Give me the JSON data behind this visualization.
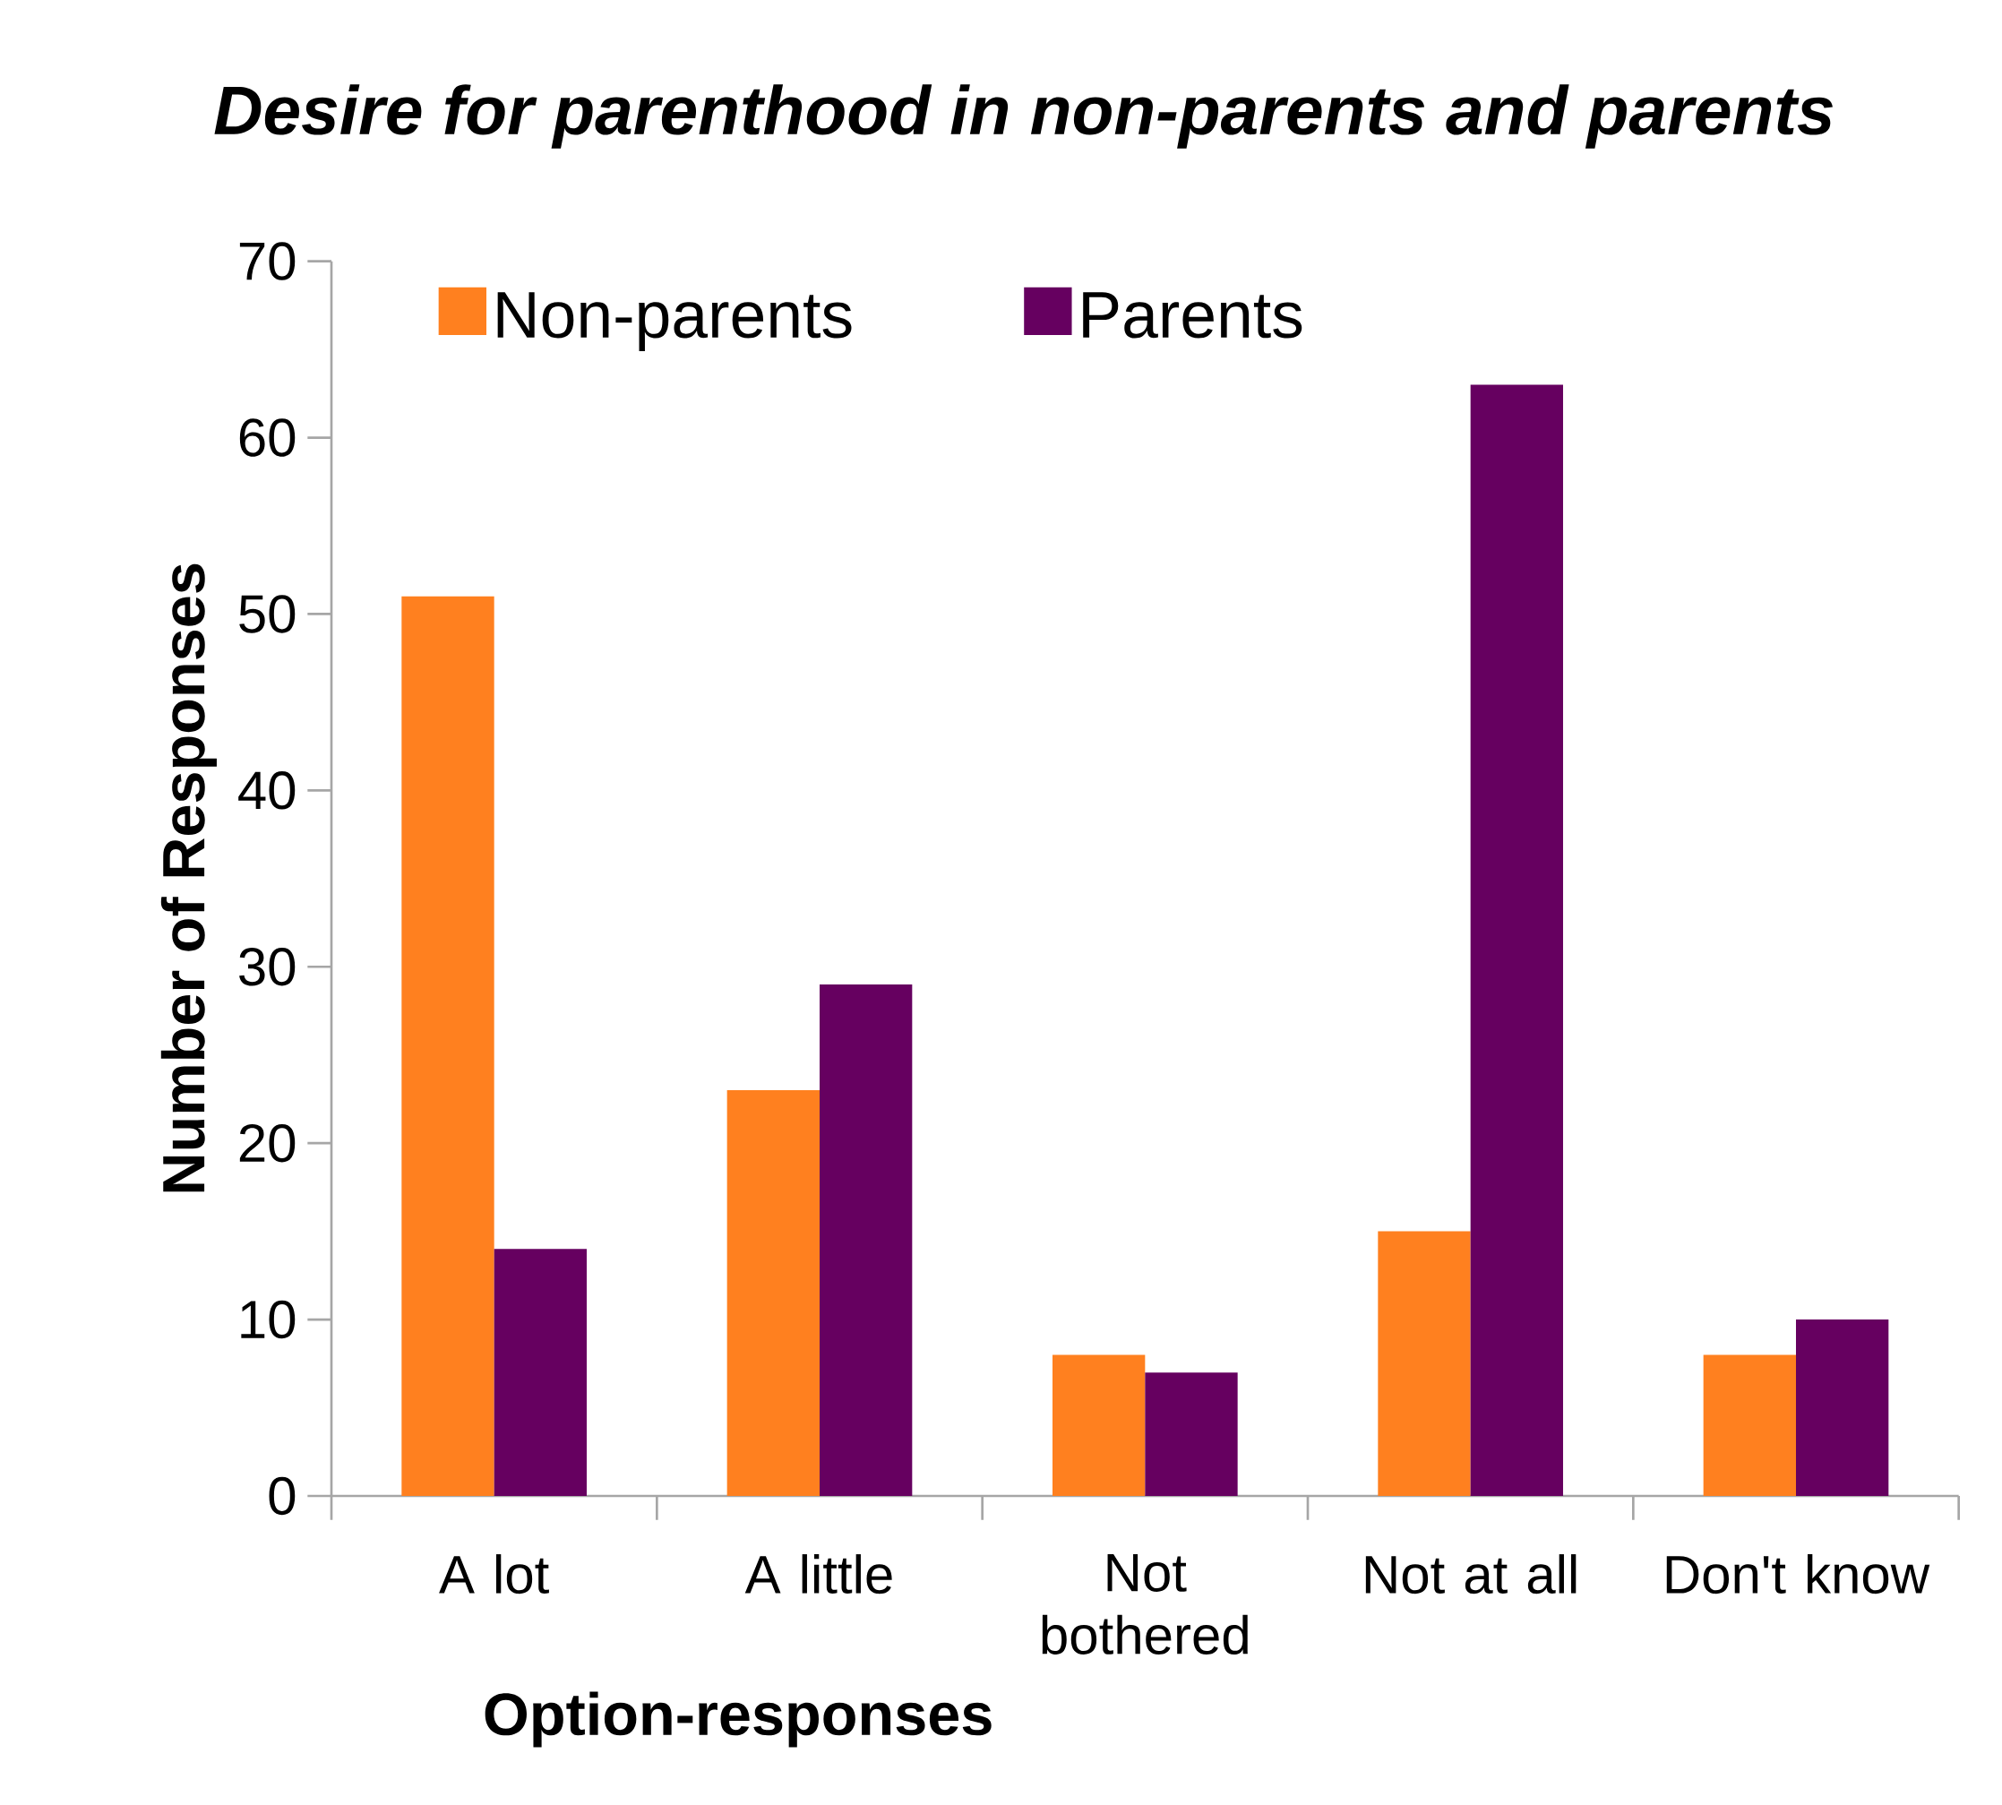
{
  "chart_data": {
    "type": "bar",
    "title": "*Desire for parenthood in non-parents and parents*",
    "xlabel": "Option-responses",
    "ylabel": "Number of Responses",
    "categories": [
      "A lot",
      "A little",
      "Not bothered",
      "Not at all",
      "Don't know"
    ],
    "series": [
      {
        "name": "Non-parents",
        "color": "#ff801f",
        "values": [
          51,
          23,
          8,
          15,
          8
        ]
      },
      {
        "name": "Parents",
        "color": "#660060",
        "values": [
          14,
          29,
          7,
          63,
          10
        ]
      }
    ],
    "ylim": [
      0,
      70
    ],
    "yticks": [
      0,
      10,
      20,
      30,
      40,
      50,
      60,
      70
    ],
    "legend": "top left",
    "grid": false
  }
}
